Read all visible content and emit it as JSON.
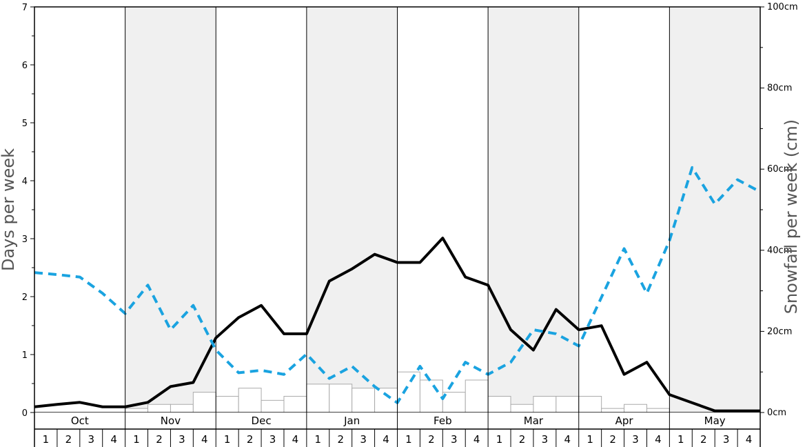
{
  "chart_data": {
    "type": "bar+line",
    "months": [
      "Oct",
      "Nov",
      "Dec",
      "Jan",
      "Feb",
      "Mar",
      "Apr",
      "May"
    ],
    "weeks_per_month": [
      "1",
      "2",
      "3",
      "4"
    ],
    "left_axis": {
      "label": "Days per week",
      "min": 0,
      "max": 7,
      "ticks": [
        "0",
        "1",
        "2",
        "3",
        "4",
        "5",
        "6",
        "7"
      ]
    },
    "right_axis": {
      "label": "Snowfall per week (cm)",
      "min": 0,
      "max": 100,
      "ticks": [
        "0cm",
        "20cm",
        "40cm",
        "60cm",
        "80cm",
        "100cm"
      ]
    },
    "shaded_months": [
      "Nov",
      "Jan",
      "Mar",
      "May"
    ],
    "colors": {
      "shade": "#f0f0f0",
      "bar_fill": "#ffffff",
      "bar_stroke": "#aaaaaa",
      "solid_line": "#000000",
      "dashed_line": "#1aa3e0"
    },
    "series": [
      {
        "kind": "bar",
        "axis": "right",
        "values": [
          0,
          0,
          0,
          0,
          1,
          2,
          2,
          5,
          4,
          6,
          3,
          4,
          7,
          7,
          6,
          6,
          10,
          8,
          5,
          8,
          4,
          2,
          4,
          4,
          4,
          1,
          2,
          1,
          0,
          0,
          0,
          0
        ]
      },
      {
        "kind": "line",
        "style": "solid",
        "axis": "right",
        "values": [
          1.4,
          2.0,
          2.5,
          1.4,
          1.4,
          2.5,
          6.4,
          7.4,
          18.4,
          23.4,
          26.4,
          19.4,
          19.4,
          32.4,
          35.4,
          39.0,
          37.0,
          37.0,
          43.0,
          33.4,
          31.4,
          20.4,
          15.4,
          25.4,
          20.4,
          21.4,
          9.4,
          12.4,
          4.4,
          2.4,
          0.4,
          0.4,
          0.4
        ]
      },
      {
        "kind": "line",
        "style": "dashed",
        "axis": "right",
        "values": [
          34.5,
          34.0,
          33.4,
          29.4,
          24.4,
          31.4,
          20.4,
          26.4,
          15.4,
          9.8,
          10.4,
          9.4,
          14.4,
          8.4,
          11.4,
          6.4,
          2.4,
          11.4,
          3.4,
          12.4,
          9.4,
          12.4,
          20.4,
          19.4,
          16.4,
          28.4,
          40.4,
          29.4,
          42.4,
          60.4,
          51.4,
          57.4,
          54.4
        ]
      }
    ]
  }
}
